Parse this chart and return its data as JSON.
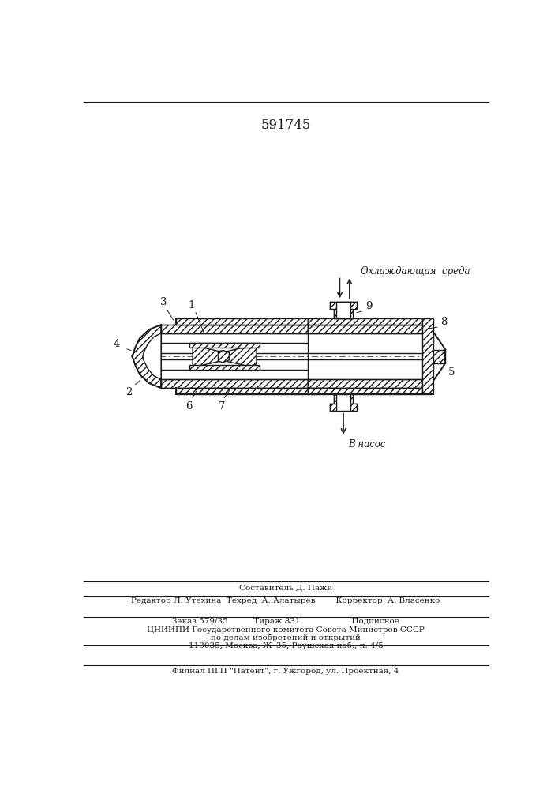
{
  "patent_number": "591745",
  "background_color": "#ffffff",
  "line_color": "#1a1a1a",
  "fig_width": 7.07,
  "fig_height": 10.0,
  "labels": {
    "cooling_medium": "Охлаждающая  среда",
    "to_pump": "В насос"
  },
  "footer": {
    "line1": "Составитель Д. Пажи",
    "line2": "Редактор Л. Утехина  Техред  А. Алатырев        Корректор  А. Власенко",
    "line3": "Заказ 579/35          Тираж 831                    Подписное",
    "line4": "ЦНИИПИ Государственного комитета Совета Министров СССР",
    "line5": "по делам изобретений и открытий",
    "line6": "113035, Москва, Ж–35, Раушская наб., п. 4/5",
    "line7": "Филиал ПГП \"Патент\", г. Ужгород, ул. Проектная, 4"
  }
}
